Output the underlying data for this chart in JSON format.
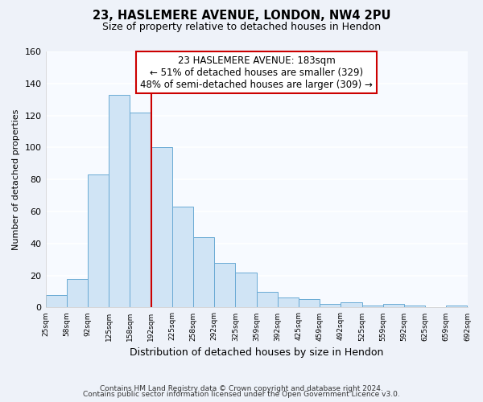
{
  "title": "23, HASLEMERE AVENUE, LONDON, NW4 2PU",
  "subtitle": "Size of property relative to detached houses in Hendon",
  "xlabel": "Distribution of detached houses by size in Hendon",
  "ylabel": "Number of detached properties",
  "bar_labels": [
    "25sqm",
    "58sqm",
    "92sqm",
    "125sqm",
    "158sqm",
    "192sqm",
    "225sqm",
    "258sqm",
    "292sqm",
    "325sqm",
    "359sqm",
    "392sqm",
    "425sqm",
    "459sqm",
    "492sqm",
    "525sqm",
    "559sqm",
    "592sqm",
    "625sqm",
    "659sqm",
    "692sqm"
  ],
  "bar_color": "#d0e4f5",
  "bar_edge_color": "#6aaad4",
  "highlight_color": "#cc0000",
  "annotation_title": "23 HASLEMERE AVENUE: 183sqm",
  "annotation_line1": "← 51% of detached houses are smaller (329)",
  "annotation_line2": "48% of semi-detached houses are larger (309) →",
  "annotation_box_color": "#ffffff",
  "annotation_box_edge": "#cc0000",
  "ylim": [
    0,
    160
  ],
  "yticks": [
    0,
    20,
    40,
    60,
    80,
    100,
    120,
    140,
    160
  ],
  "footer1": "Contains HM Land Registry data © Crown copyright and database right 2024.",
  "footer2": "Contains public sector information licensed under the Open Government Licence v3.0.",
  "bg_color": "#eef2f9",
  "plot_bg_color": "#f7faff",
  "grid_color": "#ffffff",
  "bin_values": [
    8,
    18,
    83,
    133,
    122,
    100,
    63,
    44,
    28,
    22,
    10,
    6,
    5,
    2,
    3,
    1,
    2,
    1,
    0,
    1
  ],
  "n_bins": 20,
  "highlight_bin": 5
}
